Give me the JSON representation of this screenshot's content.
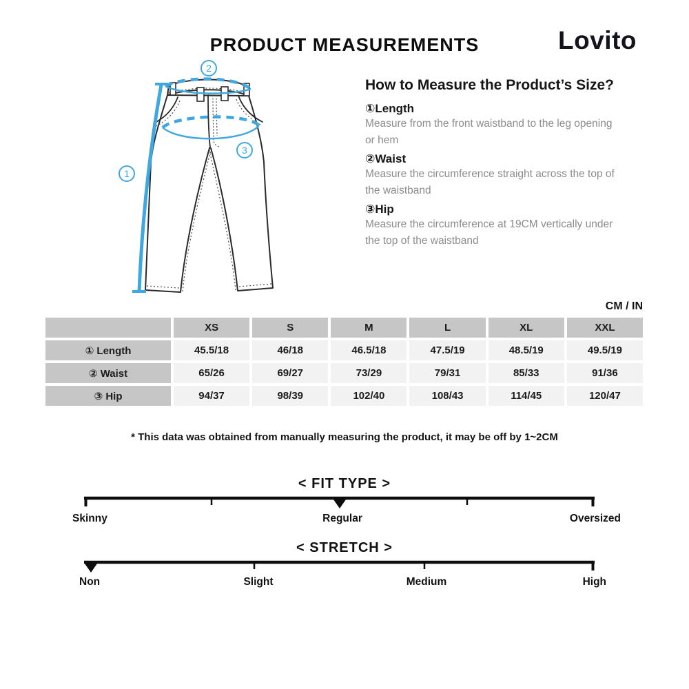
{
  "page": {
    "title": "PRODUCT MEASUREMENTS",
    "brand": "Lovito",
    "unit_label": "CM / IN",
    "footnote": "* This data was obtained from manually measuring the product, it may be off by 1~2CM",
    "colors": {
      "accent_blue": "#3fa8e0",
      "table_header_bg": "#c6c6c6",
      "table_cell_bg": "#f2f2f2",
      "desc_text": "#8c8c8c"
    }
  },
  "diagram": {
    "subject": "pants-front-view",
    "marker_labels": [
      "1",
      "2",
      "3"
    ]
  },
  "how_to": {
    "heading": "How to Measure the Product’s Size?",
    "items": [
      {
        "label": "①Length",
        "desc": "Measure from the front waistband to the leg opening or hem"
      },
      {
        "label": "②Waist",
        "desc": "Measure the circumference straight across the top of the waistband"
      },
      {
        "label": "③Hip",
        "desc": "Measure the circumference at 19CM vertically under the top of the waistband"
      }
    ]
  },
  "table": {
    "columns": [
      "XS",
      "S",
      "M",
      "L",
      "XL",
      "XXL"
    ],
    "rows": [
      {
        "label": "① Length",
        "values": [
          "45.5/18",
          "46/18",
          "46.5/18",
          "47.5/19",
          "48.5/19",
          "49.5/19"
        ]
      },
      {
        "label": "② Waist",
        "values": [
          "65/26",
          "69/27",
          "73/29",
          "79/31",
          "85/33",
          "91/36"
        ]
      },
      {
        "label": "③ Hip",
        "values": [
          "94/37",
          "98/39",
          "102/40",
          "108/43",
          "114/45",
          "120/47"
        ]
      }
    ]
  },
  "sliders": [
    {
      "title": "< FIT TYPE >",
      "selected": "Regular",
      "marker_position_pct": 50,
      "labels": [
        "Skinny",
        "Regular",
        "Oversized"
      ]
    },
    {
      "title": "< STRETCH >",
      "selected": "Non",
      "marker_position_pct": 1.3,
      "labels": [
        "Non",
        "Slight",
        "Medium",
        "High"
      ]
    }
  ]
}
